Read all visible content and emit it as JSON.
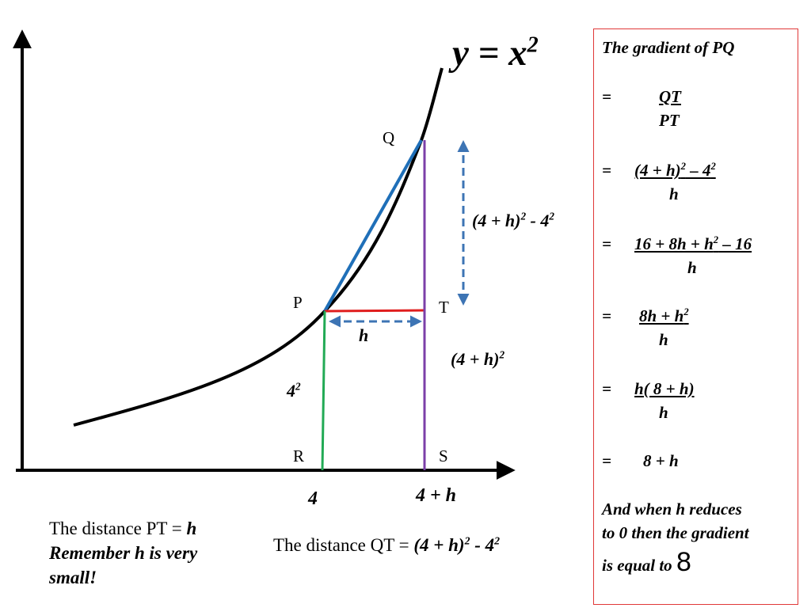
{
  "diagram": {
    "equation": "y = x",
    "equation_power": "2",
    "point_p": "P",
    "point_q": "Q",
    "point_r": "R",
    "point_s": "S",
    "point_t": "T",
    "x_label_4": "4",
    "x_label_4h": "4 + h",
    "label_h": "h",
    "label_qt_base": "(4 + h)",
    "label_qt_tail": " - 4",
    "label_qs_base": "(4 + h)",
    "label_pr_base": "4",
    "power": "2"
  },
  "notes": {
    "pt_prefix": "The distance PT = ",
    "pt_value": "h",
    "remember_line1": "Remember h is very",
    "remember_line2": "small!",
    "qt_prefix": "The distance QT = ",
    "qt_value_base": "(4 + h)",
    "qt_value_tail": " - 4",
    "power": "2"
  },
  "panel": {
    "title": "The gradient of PQ",
    "eq": "=",
    "step1_num": "QT",
    "step1_den": "PT",
    "step2_num_a": "(4 + h)",
    "step2_num_b": " – 4",
    "step2_den": "h",
    "step3_num_a": "16  + 8h + h",
    "step3_num_b": " – 16",
    "step3_den": "h",
    "step4_num": "8h + h",
    "step4_den": "h",
    "step5_num": "h( 8 + h)",
    "step5_den": "h",
    "step6": "8 + h",
    "conclusion_l1": "And when h reduces",
    "conclusion_l2": "to 0 then the gradient",
    "conclusion_l3": "is equal to ",
    "conclusion_value": "8",
    "power": "2"
  },
  "colors": {
    "curve": "#000000",
    "chord": "#1f6fb8",
    "horizontal": "#e01e1e",
    "vertical_q": "#7b3fa8",
    "vertical_p": "#22aa55",
    "arrow": "#3d74b4",
    "border": "#e03838"
  }
}
